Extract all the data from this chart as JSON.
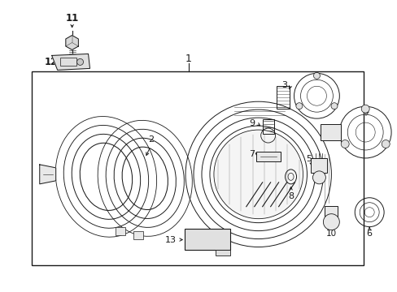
{
  "bg_color": "#ffffff",
  "line_color": "#1a1a1a",
  "text_color": "#1a1a1a",
  "figsize": [
    4.89,
    3.6
  ],
  "dpi": 100
}
